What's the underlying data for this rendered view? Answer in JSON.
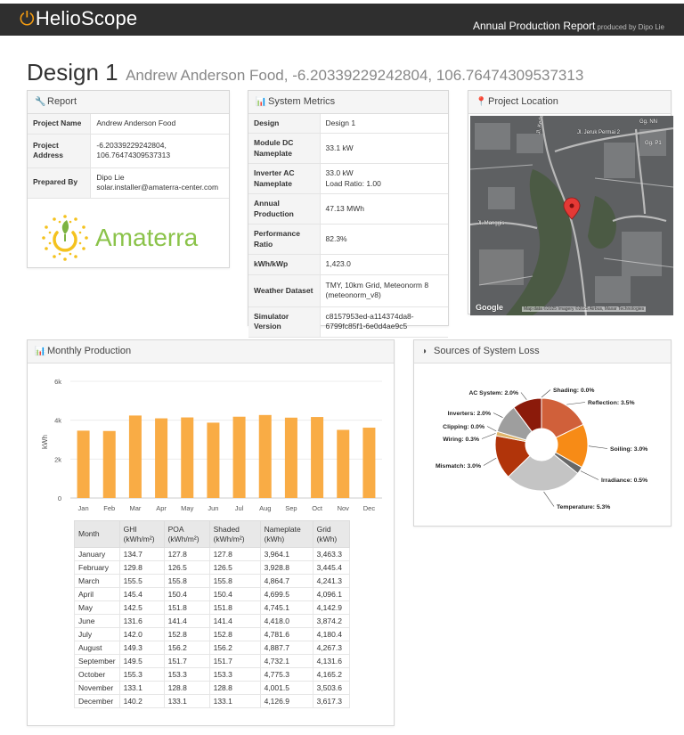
{
  "header": {
    "logo": "HelioScope",
    "report_title": "Annual Production Report",
    "produced_by": "produced by Dipo Lie"
  },
  "design": {
    "name": "Design 1",
    "subtitle": "Andrew Anderson Food, -6.20339229242804, 106.76474309537313"
  },
  "report": {
    "title": "Report",
    "rows": [
      {
        "key": "Project Name",
        "value": "Andrew Anderson Food"
      },
      {
        "key": "Project Address",
        "value": "-6.20339229242804, 106.76474309537313"
      },
      {
        "key": "Prepared By",
        "value": "Dipo Lie",
        "value2": "solar.installer@amaterra-center.com"
      }
    ],
    "company_logo_text": "Amaterra"
  },
  "metrics": {
    "title": "System Metrics",
    "rows": [
      {
        "key": "Design",
        "value": "Design 1"
      },
      {
        "key": "Module DC Nameplate",
        "value": "33.1 kW"
      },
      {
        "key": "Inverter AC Nameplate",
        "value": "33.0 kW",
        "value2": "Load Ratio: 1.00"
      },
      {
        "key": "Annual Production",
        "value": "47.13 MWh"
      },
      {
        "key": "Performance Ratio",
        "value": "82.3%"
      },
      {
        "key": "kWh/kWp",
        "value": "1,423.0"
      },
      {
        "key": "Weather Dataset",
        "value": "TMY, 10km Grid, Meteonorm 8 (meteonorm_v8)"
      },
      {
        "key": "Simulator Version",
        "value": "c8157953ed-a114374da8-6799fc85f1-6e0d4ae9c5"
      }
    ]
  },
  "location": {
    "title": "Project Location",
    "labels": [
      "Jl. Jeruk Permai 2",
      "Jl. Manggis",
      "Gg. NN",
      "Gg. P1",
      "Jl. Kedoya Duri"
    ],
    "attribution": "Map data ©2025 Imagery ©2025 Airbus, Maxar Technologies",
    "google": "Google"
  },
  "monthly": {
    "title": "Monthly Production",
    "columns": [
      "Month",
      "GHI (kWh/m²)",
      "POA (kWh/m²)",
      "Shaded (kWh/m²)",
      "Nameplate (kWh)",
      "Grid (kWh)"
    ],
    "rows": [
      [
        "January",
        "134.7",
        "127.8",
        "127.8",
        "3,964.1",
        "3,463.3"
      ],
      [
        "February",
        "129.8",
        "126.5",
        "126.5",
        "3,928.8",
        "3,445.4"
      ],
      [
        "March",
        "155.5",
        "155.8",
        "155.8",
        "4,864.7",
        "4,241.3"
      ],
      [
        "April",
        "145.4",
        "150.4",
        "150.4",
        "4,699.5",
        "4,096.1"
      ],
      [
        "May",
        "142.5",
        "151.8",
        "151.8",
        "4,745.1",
        "4,142.9"
      ],
      [
        "June",
        "131.6",
        "141.4",
        "141.4",
        "4,418.0",
        "3,874.2"
      ],
      [
        "July",
        "142.0",
        "152.8",
        "152.8",
        "4,781.6",
        "4,180.4"
      ],
      [
        "August",
        "149.3",
        "156.2",
        "156.2",
        "4,887.7",
        "4,267.3"
      ],
      [
        "September",
        "149.5",
        "151.7",
        "151.7",
        "4,732.1",
        "4,131.6"
      ],
      [
        "October",
        "155.3",
        "153.3",
        "153.3",
        "4,775.3",
        "4,165.2"
      ],
      [
        "November",
        "133.1",
        "128.8",
        "128.8",
        "4,001.5",
        "3,503.6"
      ],
      [
        "December",
        "140.2",
        "133.1",
        "133.1",
        "4,126.9",
        "3,617.3"
      ]
    ]
  },
  "losses": {
    "title": "Sources of System Loss"
  },
  "chart_data": [
    {
      "type": "bar",
      "categories": [
        "Jan",
        "Feb",
        "Mar",
        "Apr",
        "May",
        "Jun",
        "Jul",
        "Aug",
        "Sep",
        "Oct",
        "Nov",
        "Dec"
      ],
      "values": [
        3463.3,
        3445.4,
        4241.3,
        4096.1,
        4142.9,
        3874.2,
        4180.4,
        4267.3,
        4131.6,
        4165.2,
        3503.6,
        3617.3
      ],
      "ylabel": "kWh",
      "ylim": [
        0,
        6000
      ],
      "yticks": [
        0,
        2000,
        4000,
        6000
      ],
      "ytick_labels": [
        "0",
        "2k",
        "4k",
        "6k"
      ],
      "color": "#f9ac45",
      "grid": true
    },
    {
      "type": "pie",
      "title": "Sources of System Loss",
      "labels": [
        "Shading: 0.0%",
        "Reflection: 3.5%",
        "Soiling: 3.0%",
        "Irradiance: 0.5%",
        "Temperature: 5.3%",
        "Mismatch: 3.0%",
        "Wiring: 0.3%",
        "Clipping: 0.0%",
        "Inverters: 2.0%",
        "AC System: 2.0%"
      ],
      "values": [
        0.0,
        3.5,
        3.0,
        0.5,
        5.3,
        3.0,
        0.3,
        0.0,
        2.0,
        2.0
      ],
      "colors": [
        "#7f1a0b",
        "#d0603a",
        "#f78b16",
        "#676767",
        "#c4c4c4",
        "#b1340a",
        "#e0b56b",
        "#2e7d32",
        "#9e9e9e",
        "#8b1a0a"
      ]
    }
  ]
}
